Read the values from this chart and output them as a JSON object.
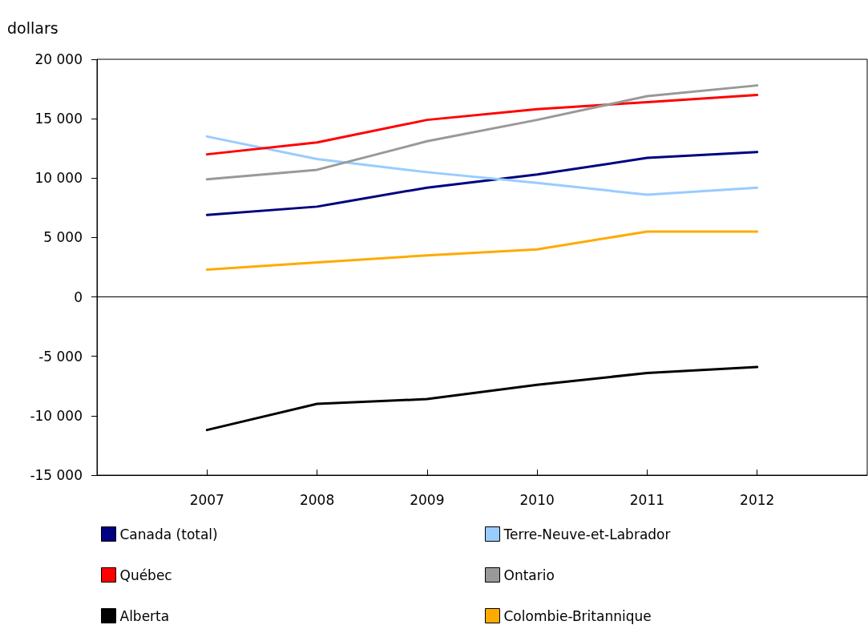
{
  "chart_data": {
    "type": "line",
    "ylabel": "dollars",
    "x": [
      2007,
      2008,
      2009,
      2010,
      2011,
      2012
    ],
    "xlim": [
      2006,
      2013
    ],
    "xticks": [
      2007,
      2008,
      2009,
      2010,
      2011,
      2012
    ],
    "ylim": [
      -15000,
      20000
    ],
    "yticks": [
      {
        "value": -15000,
        "label": "-15 000"
      },
      {
        "value": -10000,
        "label": "-10 000"
      },
      {
        "value": -5000,
        "label": "-5 000"
      },
      0,
      {
        "value": 5000,
        "label": "5 000"
      },
      {
        "value": 10000,
        "label": "10 000"
      },
      {
        "value": 15000,
        "label": "15 000"
      },
      {
        "value": 20000,
        "label": "20 000"
      }
    ],
    "legend": "bottom",
    "marker": "none",
    "line_style": "solid",
    "series": [
      {
        "name": "Canada (total)",
        "color": "#000080",
        "values": [
          6900,
          7600,
          9200,
          10300,
          11700,
          12200
        ]
      },
      {
        "name": "Terre-Neuve-et-Labrador",
        "color": "#99ccff",
        "values": [
          13500,
          11600,
          10500,
          9600,
          8600,
          9200
        ]
      },
      {
        "name": "Québec",
        "color": "#ff0000",
        "values": [
          12000,
          13000,
          14900,
          15800,
          16400,
          17000
        ]
      },
      {
        "name": "Ontario",
        "color": "#999999",
        "values": [
          9900,
          10700,
          13100,
          14900,
          16900,
          17800
        ]
      },
      {
        "name": "Alberta",
        "color": "#000000",
        "values": [
          -11200,
          -9000,
          -8600,
          -7400,
          -6400,
          -5900
        ]
      },
      {
        "name": "Colombie-Britannique",
        "color": "#ffaa00",
        "values": [
          2300,
          2900,
          3500,
          4000,
          5500,
          5500
        ]
      }
    ]
  }
}
